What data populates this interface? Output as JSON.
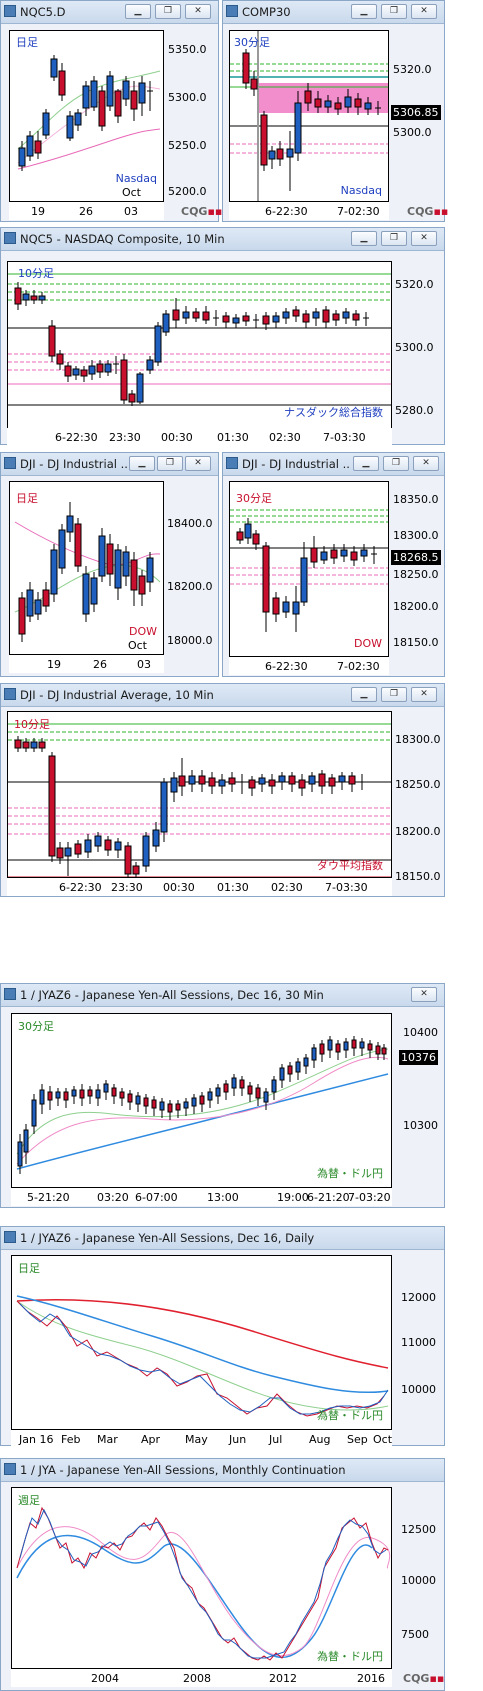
{
  "window_buttons": [
    "▁",
    "❐",
    "✕"
  ],
  "logo": {
    "text": "CQG",
    "mark": "▪▪"
  },
  "windows": {
    "nqc5d": {
      "title": "NQC5.D",
      "tag": "日足",
      "symbol": "Nasdaq",
      "sub": "Oct",
      "yticks": [
        "5350.0",
        "5300.0",
        "5250.0",
        "5200.0"
      ],
      "xticks": [
        "19",
        "26",
        "03"
      ]
    },
    "comp30": {
      "title": "COMP30",
      "tag": "30分足",
      "symbol": "Nasdaq",
      "price": "5306.85",
      "yticks": [
        "5320.0",
        "5300.0"
      ],
      "xticks": [
        "6-22:30",
        "7-02:30"
      ]
    },
    "nqc510": {
      "title": "NQC5 - NASDAQ Composite, 10 Min",
      "tag": "10分足",
      "symbol": "ナスダック総合指数",
      "yticks": [
        "5320.0",
        "5300.0",
        "5280.0"
      ],
      "xticks": [
        "6-22:30",
        "23:30",
        "00:30",
        "01:30",
        "02:30",
        "7-03:30"
      ]
    },
    "djid": {
      "title": "DJI - DJ Industrial ...",
      "tag": "日足",
      "symbol": "DOW",
      "sub": "Oct",
      "yticks": [
        "18400.0",
        "18200.0",
        "18000.0"
      ],
      "xticks": [
        "19",
        "26",
        "03"
      ]
    },
    "dji30": {
      "title": "DJI - DJ Industrial ...",
      "tag": "30分足",
      "symbol": "DOW",
      "price": "18268.5",
      "yticks": [
        "18350.0",
        "18300.0",
        "18250.0",
        "18200.0",
        "18150.0"
      ],
      "xticks": [
        "6-22:30",
        "7-02:30"
      ]
    },
    "dji10": {
      "title": "DJI - DJ Industrial Average, 10 Min",
      "tag": "10分足",
      "symbol": "ダウ平均指数",
      "yticks": [
        "18300.0",
        "18250.0",
        "18200.0",
        "18150.0"
      ],
      "xticks": [
        "6-22:30",
        "23:30",
        "00:30",
        "01:30",
        "02:30",
        "7-03:30"
      ]
    },
    "jy30": {
      "title": "1 / JYAZ6 - Japanese Yen-All Sessions, Dec 16, 30 Min",
      "tag": "30分足",
      "symbol": "為替・ドル円",
      "price": "10376",
      "yticks": [
        "10400",
        "10300"
      ],
      "xticks": [
        "5-21:20",
        "03:20",
        "6-07:00",
        "13:00",
        "19:00",
        "6-21:20",
        "7-03:20"
      ]
    },
    "jyd": {
      "title": "1 / JYAZ6 - Japanese Yen-All Sessions, Dec 16, Daily",
      "tag": "日足",
      "symbol": "為替・ドル円",
      "yticks": [
        "12000",
        "11000",
        "10000"
      ],
      "xticks": [
        "Jan 16",
        "Feb",
        "Mar",
        "Apr",
        "May",
        "Jun",
        "Jul",
        "Aug",
        "Sep",
        "Oct"
      ]
    },
    "jym": {
      "title": "1 / JYA - Japanese Yen-All Sessions, Monthly Continuation",
      "tag": "週足",
      "symbol": "為替・ドル円",
      "yticks": [
        "12500",
        "10000",
        "7500"
      ],
      "xticks": [
        "2004",
        "2008",
        "2012",
        "2016"
      ]
    }
  },
  "colors": {
    "up": "#1f5fbf",
    "down": "#c8102e",
    "accent_green": "#2db52d",
    "accent_pink": "#e86ab8"
  }
}
